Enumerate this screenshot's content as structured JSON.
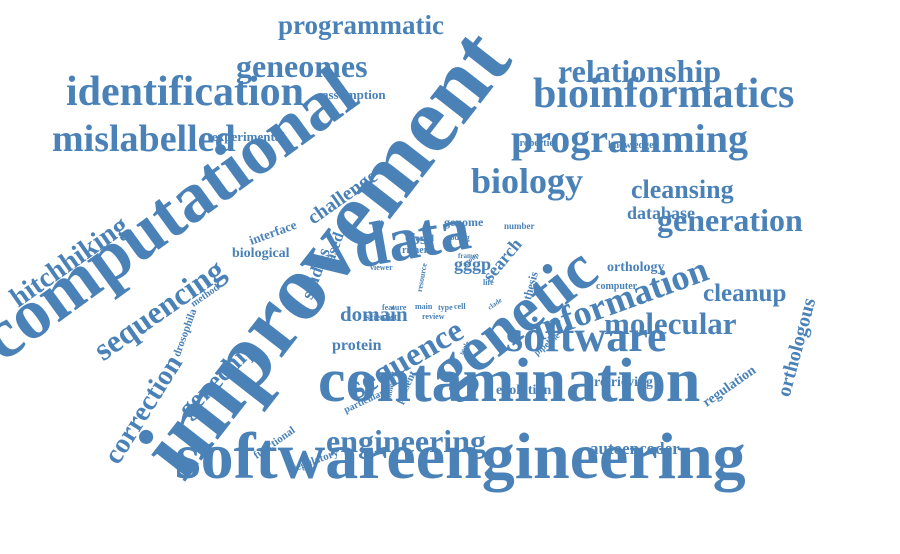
{
  "colors": {
    "word": "#4a82b8",
    "background": "#ffffff"
  },
  "words": [
    {
      "text": "softwareengineering"
    },
    {
      "text": "improvement"
    },
    {
      "text": "contamination"
    },
    {
      "text": "computational"
    },
    {
      "text": "data"
    },
    {
      "text": "genetic"
    },
    {
      "text": "bioinformatics"
    },
    {
      "text": "programming"
    },
    {
      "text": "software"
    },
    {
      "text": "information"
    },
    {
      "text": "identification"
    },
    {
      "text": "mislabelled"
    },
    {
      "text": "engineering"
    },
    {
      "text": "generation"
    },
    {
      "text": "molecular"
    },
    {
      "text": "sequence"
    },
    {
      "text": "biology"
    },
    {
      "text": "cleansing"
    },
    {
      "text": "relationship"
    },
    {
      "text": "programmatic"
    },
    {
      "text": "geneomes"
    },
    {
      "text": "sequencing"
    },
    {
      "text": "hitchhiking"
    },
    {
      "text": "correction"
    },
    {
      "text": "genechip"
    },
    {
      "text": "challenge"
    },
    {
      "text": "cleanup"
    },
    {
      "text": "orthologous"
    },
    {
      "text": "autoencoder"
    },
    {
      "text": "domain"
    },
    {
      "text": "protein"
    },
    {
      "text": "studies"
    },
    {
      "text": "database"
    },
    {
      "text": "search"
    },
    {
      "text": "gggp"
    },
    {
      "text": "evolution"
    },
    {
      "text": "retrieving"
    },
    {
      "text": "regulation"
    },
    {
      "text": "orthology"
    },
    {
      "text": "based"
    },
    {
      "text": "biological"
    },
    {
      "text": "interface"
    },
    {
      "text": "experimental"
    },
    {
      "text": "assumption"
    },
    {
      "text": "regulatory"
    },
    {
      "text": "functional"
    },
    {
      "text": "drosophila"
    },
    {
      "text": "method"
    },
    {
      "text": "sbse"
    },
    {
      "text": "genome"
    },
    {
      "text": "properties"
    },
    {
      "text": "knowledge"
    },
    {
      "text": "particular"
    },
    {
      "text": "computer"
    },
    {
      "text": "thesis"
    },
    {
      "text": "present"
    },
    {
      "text": "number"
    },
    {
      "text": "richer"
    },
    {
      "text": "several"
    },
    {
      "text": "coding"
    },
    {
      "text": "pipeline"
    },
    {
      "text": "scientist"
    },
    {
      "text": "feature"
    },
    {
      "text": "main"
    },
    {
      "text": "type"
    },
    {
      "text": "cell"
    },
    {
      "text": "review"
    },
    {
      "text": "viewer"
    },
    {
      "text": "resource"
    },
    {
      "text": "biologist"
    },
    {
      "text": "life"
    },
    {
      "text": "clade"
    },
    {
      "text": "frame"
    },
    {
      "text": "group"
    },
    {
      "text": "scale"
    },
    {
      "text": "table"
    }
  ]
}
